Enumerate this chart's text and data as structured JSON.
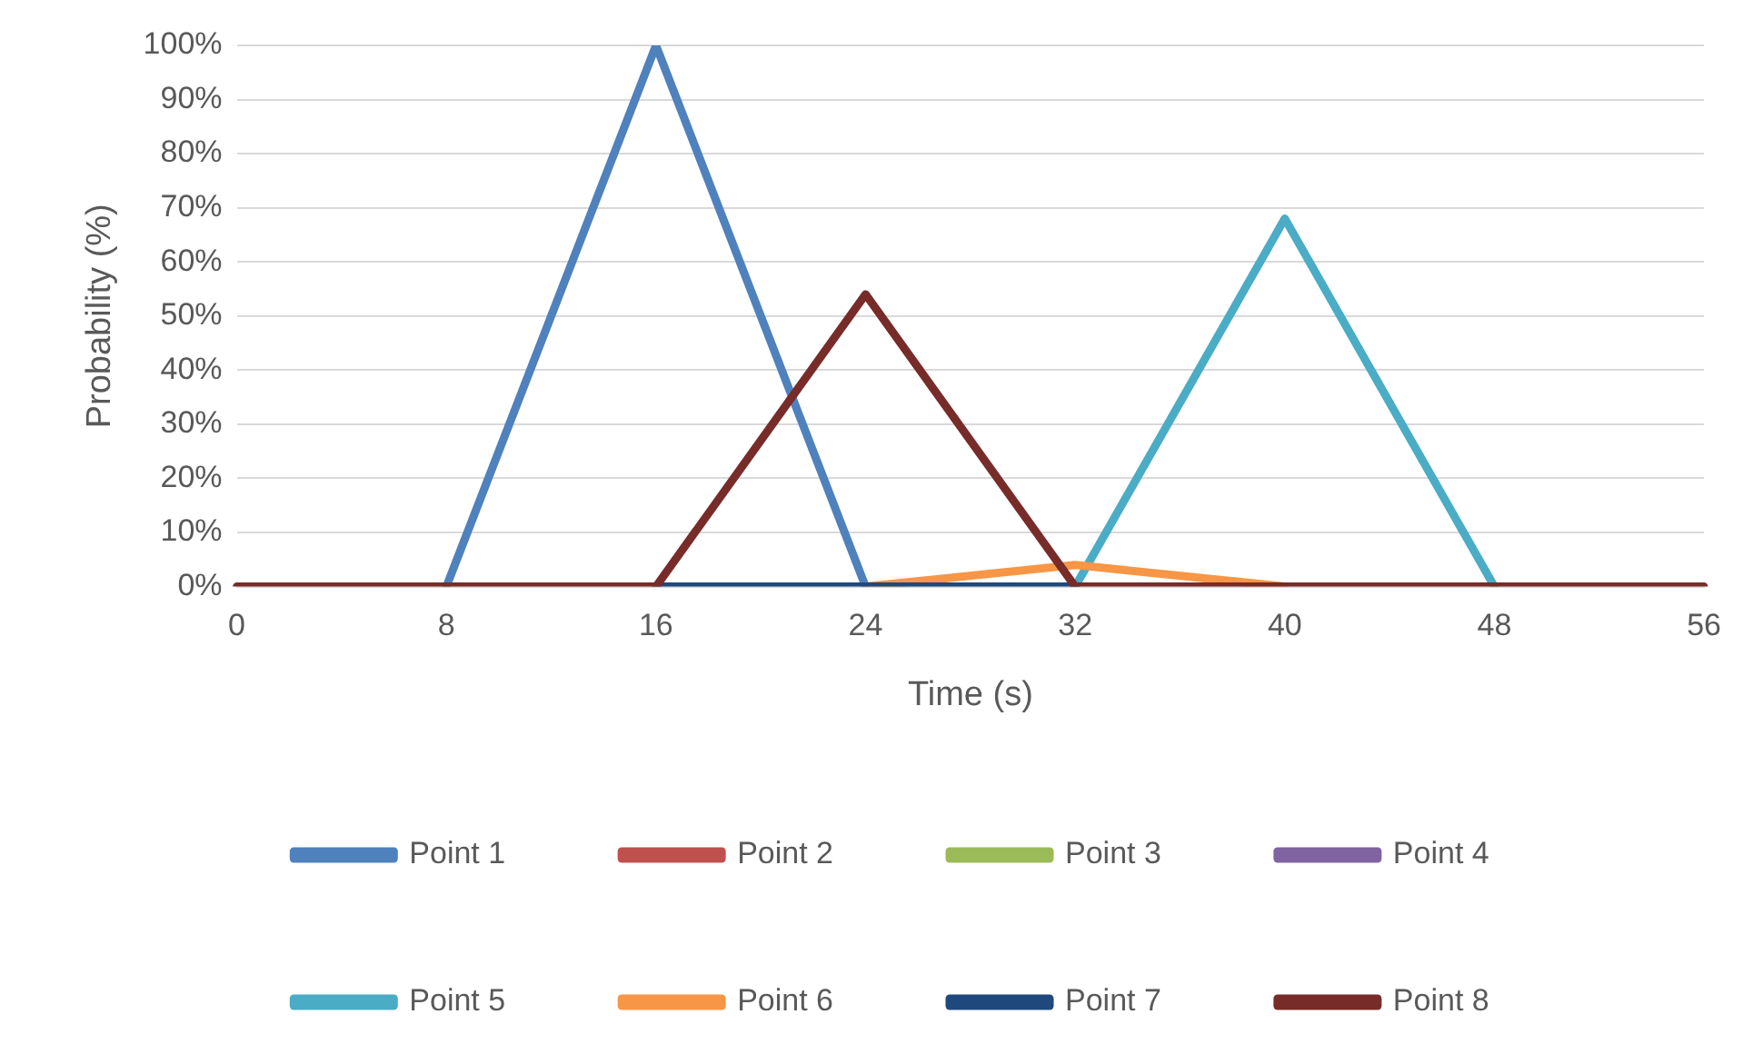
{
  "chart_data": {
    "type": "line",
    "xlabel": "Time (s)",
    "ylabel": "Probability (%)",
    "categories": [
      "0",
      "8",
      "16",
      "24",
      "32",
      "40",
      "48",
      "56"
    ],
    "ylim": [
      0,
      100
    ],
    "yticks": [
      {
        "value": 0,
        "label": "0%"
      },
      {
        "value": 10,
        "label": "10%"
      },
      {
        "value": 20,
        "label": "20%"
      },
      {
        "value": 30,
        "label": "30%"
      },
      {
        "value": 40,
        "label": "40%"
      },
      {
        "value": 50,
        "label": "50%"
      },
      {
        "value": 60,
        "label": "60%"
      },
      {
        "value": 70,
        "label": "70%"
      },
      {
        "value": 80,
        "label": "80%"
      },
      {
        "value": 90,
        "label": "90%"
      },
      {
        "value": 100,
        "label": "100%"
      }
    ],
    "grid": "y",
    "legend": "bottom",
    "marker": "none",
    "line_style": "solid",
    "series": [
      {
        "name": "Point 1",
        "color": "#4f81bd",
        "values": [
          null,
          0,
          100,
          0,
          null,
          null,
          null,
          null
        ]
      },
      {
        "name": "Point 2",
        "color": "#c0504d",
        "values": [
          null,
          null,
          null,
          null,
          null,
          null,
          null,
          null
        ]
      },
      {
        "name": "Point 3",
        "color": "#9bbb59",
        "values": [
          null,
          null,
          null,
          null,
          null,
          null,
          null,
          null
        ]
      },
      {
        "name": "Point 4",
        "color": "#8064a2",
        "values": [
          null,
          null,
          null,
          null,
          null,
          null,
          null,
          null
        ]
      },
      {
        "name": "Point 5",
        "color": "#4bacc6",
        "values": [
          null,
          null,
          null,
          null,
          0,
          68,
          0,
          null
        ]
      },
      {
        "name": "Point 6",
        "color": "#f79646",
        "values": [
          null,
          null,
          null,
          0,
          4,
          0,
          null,
          null
        ]
      },
      {
        "name": "Point 7",
        "color": "#1f497d",
        "values": [
          null,
          null,
          0,
          0,
          0,
          null,
          null,
          null
        ]
      },
      {
        "name": "Point 8",
        "color": "#772c2a",
        "values": [
          0,
          0,
          0,
          54,
          0,
          0,
          0,
          0
        ]
      }
    ]
  }
}
